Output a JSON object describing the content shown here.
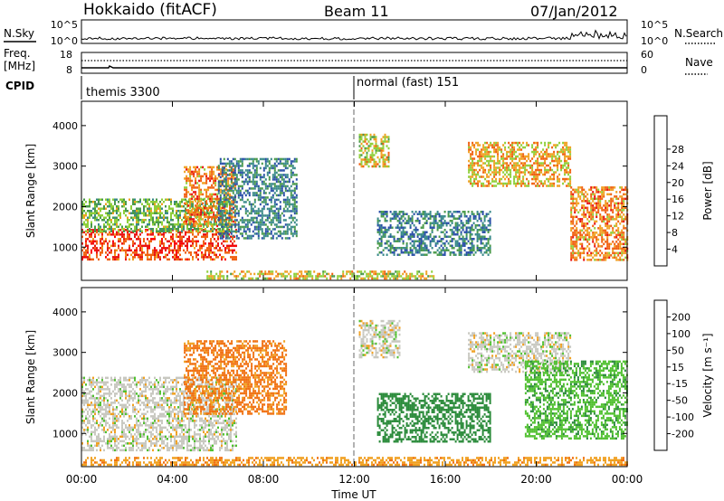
{
  "header": {
    "radar": "Hokkaido (fitACF)",
    "beam": "Beam 11",
    "date": "07/Jan/2012"
  },
  "noise_panel": {
    "left_label": "N.Sky",
    "right_label": "N.Search",
    "yticks_left": [
      "10^5",
      "10^0"
    ],
    "yticks_right": [
      "10^5",
      "10^0"
    ]
  },
  "freq_panel": {
    "left_label_1": "Freq.",
    "left_label_2": "[MHz]",
    "yticks_left": [
      "18",
      "8"
    ],
    "yticks_right": [
      "60",
      "0"
    ],
    "right_label": "Nave"
  },
  "cpid_panel": {
    "label": "CPID",
    "modes": [
      {
        "text": "themis 3300",
        "start_hour": 0
      },
      {
        "text": "normal (fast) 151",
        "start_hour": 12
      }
    ]
  },
  "axes": {
    "ylabel": "Slant Range [km]",
    "xlabel": "Time UT",
    "x_ticks": [
      "00:00",
      "04:00",
      "08:00",
      "12:00",
      "16:00",
      "20:00",
      "00:00"
    ],
    "x_tick_hours": [
      0,
      4,
      8,
      12,
      16,
      20,
      24
    ],
    "y_ticks": [
      "1000",
      "2000",
      "3000",
      "4000"
    ],
    "y_tick_values": [
      1000,
      2000,
      3000,
      4000
    ],
    "y_range_km": [
      180,
      4600
    ],
    "x_range_hours": [
      0,
      24
    ]
  },
  "power_panel": {
    "colorbar_label": "Power [dB]",
    "colorbar_ticks": [
      "4",
      "8",
      "12",
      "16",
      "20",
      "24",
      "28"
    ],
    "colorbar_colors": [
      "#0a0aee",
      "#2a4fa8",
      "#3a8a8a",
      "#4a9a4a",
      "#8fcf3a",
      "#f0a020",
      "#f06010",
      "#e81010",
      "#ff0000"
    ]
  },
  "velocity_panel": {
    "colorbar_label": "Velocity [m s⁻¹]",
    "colorbar_ticks": [
      "200",
      "100",
      "50",
      "15",
      "-15",
      "-50",
      "-100",
      "-200"
    ],
    "colorbar_colors": [
      "#1010c0",
      "#2a6aa8",
      "#2a8a3a",
      "#50c030",
      "#c8c8c0",
      "#f0a020",
      "#f07010",
      "#e82020",
      "#ff0000"
    ]
  },
  "chart_data": {
    "type": "heatmap",
    "title": "Hokkaido (fitACF) Beam 11 07/Jan/2012",
    "xlabel": "Time UT",
    "ylabel": "Slant Range [km]",
    "xlim_hours": [
      0,
      24
    ],
    "ylim_km": [
      180,
      4600
    ],
    "power_echo_regions": [
      {
        "t0": 0.0,
        "t1": 6.8,
        "r0": 700,
        "r1": 1450,
        "power_db": 26
      },
      {
        "t0": 0.0,
        "t1": 6.5,
        "r0": 1400,
        "r1": 2200,
        "power_db": 14
      },
      {
        "t0": 4.5,
        "t1": 6.8,
        "r0": 1500,
        "r1": 3000,
        "power_db": 22
      },
      {
        "t0": 6.0,
        "t1": 9.5,
        "r0": 1200,
        "r1": 3200,
        "power_db": 8
      },
      {
        "t0": 5.5,
        "t1": 15.5,
        "r0": 200,
        "r1": 420,
        "power_db": 18
      },
      {
        "t0": 12.2,
        "t1": 13.5,
        "r0": 3000,
        "r1": 3800,
        "power_db": 18
      },
      {
        "t0": 13.0,
        "t1": 18.0,
        "r0": 800,
        "r1": 1900,
        "power_db": 8
      },
      {
        "t0": 17.0,
        "t1": 21.5,
        "r0": 2500,
        "r1": 3600,
        "power_db": 20
      },
      {
        "t0": 21.5,
        "t1": 24.0,
        "r0": 700,
        "r1": 2500,
        "power_db": 22
      }
    ],
    "velocity_echo_regions": [
      {
        "t0": 0.0,
        "t1": 6.8,
        "r0": 600,
        "r1": 2400,
        "velocity": 0
      },
      {
        "t0": 4.5,
        "t1": 9.0,
        "r0": 1500,
        "r1": 3300,
        "velocity": -60
      },
      {
        "t0": 12.2,
        "t1": 14.0,
        "r0": 2900,
        "r1": 3800,
        "velocity": 0
      },
      {
        "t0": 13.0,
        "t1": 18.0,
        "r0": 800,
        "r1": 2000,
        "velocity": 70
      },
      {
        "t0": 17.0,
        "t1": 21.5,
        "r0": 2500,
        "r1": 3500,
        "velocity": 0
      },
      {
        "t0": 19.5,
        "t1": 24.0,
        "r0": 900,
        "r1": 2800,
        "velocity": 40
      },
      {
        "t0": 0.0,
        "t1": 24.0,
        "r0": 200,
        "r1": 420,
        "velocity": -40
      }
    ]
  }
}
